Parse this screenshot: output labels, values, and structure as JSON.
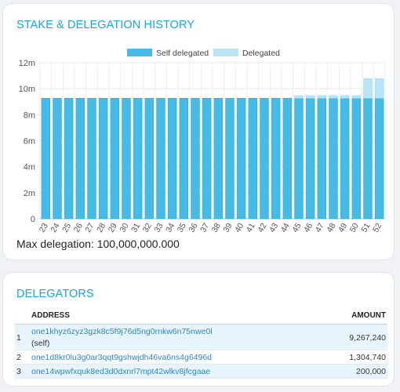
{
  "stake_card": {
    "title": "STAKE & DELEGATION HISTORY",
    "max_delegation_label": "Max delegation:",
    "max_delegation_value": "100,000,000.000"
  },
  "delegators_card": {
    "title": "DELEGATORS",
    "headers": {
      "address": "ADDRESS",
      "amount": "AMOUNT"
    },
    "rows": [
      {
        "index": "1",
        "address": "one1khyz6zyz3gzk8c5f9j76d5ng0rnkw6n75nwe0l",
        "note": "(self)",
        "amount": "9,267,240"
      },
      {
        "index": "2",
        "address": "one1d8kr0lu3g0ar3qqt9gshwjdh46va6ns4g6496d",
        "note": "",
        "amount": "1,304,740"
      },
      {
        "index": "3",
        "address": "one14wpwfxquk8ed3d0dxnrl7mpt42wlkv8jfcgaae",
        "note": "",
        "amount": "200,000"
      }
    ]
  },
  "colors": {
    "self_delegated": "#45bbe6",
    "delegated": "#b8e4f6",
    "accent": "#1aa3dd",
    "link": "#2c86c9"
  },
  "chart_data": {
    "type": "bar",
    "stacked": true,
    "legend_position": "top-center",
    "grid": true,
    "ylim": [
      0,
      12
    ],
    "y_ticks": [
      "0",
      "2m",
      "4m",
      "6m",
      "8m",
      "10m",
      "12m"
    ],
    "y_tick_values": [
      0,
      2,
      4,
      6,
      8,
      10,
      12
    ],
    "categories": [
      "23",
      "24",
      "25",
      "26",
      "27",
      "28",
      "29",
      "30",
      "31",
      "32",
      "33",
      "34",
      "35",
      "36",
      "37",
      "38",
      "39",
      "40",
      "41",
      "42",
      "43",
      "44",
      "45",
      "46",
      "47",
      "48",
      "49",
      "50",
      "51",
      "52"
    ],
    "series": [
      {
        "name": "Self delegated",
        "values": [
          9.27,
          9.27,
          9.27,
          9.27,
          9.27,
          9.27,
          9.27,
          9.27,
          9.27,
          9.27,
          9.27,
          9.27,
          9.27,
          9.27,
          9.27,
          9.27,
          9.27,
          9.27,
          9.27,
          9.27,
          9.27,
          9.27,
          9.27,
          9.27,
          9.27,
          9.27,
          9.27,
          9.27,
          9.27,
          9.27
        ]
      },
      {
        "name": "Delegated",
        "values": [
          0,
          0,
          0,
          0,
          0,
          0,
          0,
          0,
          0,
          0,
          0,
          0,
          0,
          0,
          0,
          0,
          0,
          0,
          0,
          0,
          0,
          0,
          0.2,
          0.2,
          0.2,
          0.2,
          0.2,
          0.2,
          1.5,
          1.5
        ]
      }
    ]
  }
}
